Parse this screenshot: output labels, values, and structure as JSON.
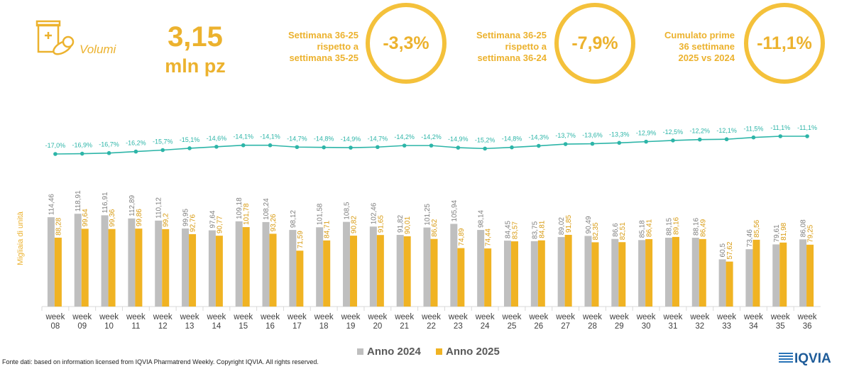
{
  "header": {
    "volume_label": "Volumi",
    "volume_value": "3,15",
    "volume_unit": "mln pz",
    "kpis": [
      {
        "line1": "Settimana 36-25",
        "line2": "rispetto a",
        "line3": "settimana 35-25",
        "value": "-3,3%"
      },
      {
        "line1": "Settimana 36-25",
        "line2": "rispetto a",
        "line3": "settimana 36-24",
        "value": "-7,9%"
      },
      {
        "line1": "Cumulato prime",
        "line2": "36 settimane",
        "line3": "2025 vs 2024",
        "value": "-11,1%"
      }
    ]
  },
  "colors": {
    "accent": "#ECB22E",
    "bar_2024": "#BFBFBF",
    "bar_2025": "#F0B323",
    "growth_line": "#2DB5A8"
  },
  "chart_data": {
    "type": "bar",
    "ylabel": "Migliaia di unità",
    "categories": [
      "week 08",
      "week 09",
      "week 10",
      "week 11",
      "week 12",
      "week 13",
      "week 14",
      "week 15",
      "week 16",
      "week 17",
      "week 18",
      "week 19",
      "week 20",
      "week 21",
      "week 22",
      "week 23",
      "week 24",
      "week 25",
      "week 26",
      "week 27",
      "week 28",
      "week 29",
      "week 30",
      "week 31",
      "week 32",
      "week 33",
      "week 34",
      "week 35",
      "week 36"
    ],
    "series": [
      {
        "name": "Anno 2024",
        "values": [
          114.46,
          118.91,
          116.91,
          112.89,
          110.12,
          99.95,
          97.64,
          109.18,
          108.24,
          98.12,
          101.58,
          108.5,
          102.46,
          91.82,
          101.25,
          105.94,
          98.14,
          84.45,
          83.75,
          89.02,
          90.49,
          86.6,
          85.18,
          88.15,
          88.16,
          60.5,
          73.46,
          79.61,
          86.08
        ],
        "labels": [
          "114,46",
          "118,91",
          "116,91",
          "112,89",
          "110,12",
          "99,95",
          "97,64",
          "109,18",
          "108,24",
          "98,12",
          "101,58",
          "108,5",
          "102,46",
          "91,82",
          "101,25",
          "105,94",
          "98,14",
          "84,45",
          "83,75",
          "89,02",
          "90,49",
          "86,6",
          "85,18",
          "88,15",
          "88,16",
          "60,5",
          "73,46",
          "79,61",
          "86,08"
        ]
      },
      {
        "name": "Anno 2025",
        "values": [
          88.28,
          99.64,
          99.36,
          99.86,
          99.2,
          92.76,
          90.77,
          101.78,
          93.26,
          71.59,
          84.71,
          90.82,
          91.65,
          90.01,
          86.62,
          74.89,
          74.44,
          83.57,
          84.81,
          91.85,
          82.35,
          82.51,
          86.41,
          89.16,
          86.49,
          57.62,
          85.56,
          81.98,
          79.25
        ],
        "labels": [
          "88,28",
          "99,64",
          "99,36",
          "99,86",
          "99,2",
          "92,76",
          "90,77",
          "101,78",
          "93,26",
          "71,59",
          "84,71",
          "90,82",
          "91,65",
          "90,01",
          "86,62",
          "74,89",
          "74,44",
          "83,57",
          "84,81",
          "91,85",
          "82,35",
          "82,51",
          "86,41",
          "89,16",
          "86,49",
          "57,62",
          "85,56",
          "81,98",
          "79,25"
        ]
      }
    ],
    "cumulative_growth": {
      "values": [
        -17.0,
        -16.9,
        -16.7,
        -16.2,
        -15.7,
        -15.1,
        -14.6,
        -14.1,
        -14.1,
        -14.7,
        -14.8,
        -14.9,
        -14.7,
        -14.2,
        -14.2,
        -14.9,
        -15.2,
        -14.8,
        -14.3,
        -13.7,
        -13.6,
        -13.3,
        -12.9,
        -12.5,
        -12.2,
        -12.1,
        -11.5,
        -11.1,
        -11.1
      ],
      "labels": [
        "-17,0%",
        "-16,9%",
        "-16,7%",
        "-16,2%",
        "-15,7%",
        "-15,1%",
        "-14,6%",
        "-14,1%",
        "-14,1%",
        "-14,7%",
        "-14,8%",
        "-14,9%",
        "-14,7%",
        "-14,2%",
        "-14,2%",
        "-14,9%",
        "-15,2%",
        "-14,8%",
        "-14,3%",
        "-13,7%",
        "-13,6%",
        "-13,3%",
        "-12,9%",
        "-12,5%",
        "-12,2%",
        "-12,1%",
        "-11,5%",
        "-11,1%",
        "-11,1%"
      ]
    },
    "legend": [
      "Anno 2024",
      "Anno 2025"
    ],
    "legend_position": "bottom",
    "grid": false
  },
  "footer": {
    "source": "Fonte dati: based on information licensed from IQVIA Pharmatrend Weekly. Copyright IQVIA. All rights reserved.",
    "logo_text": "IQVIA"
  }
}
